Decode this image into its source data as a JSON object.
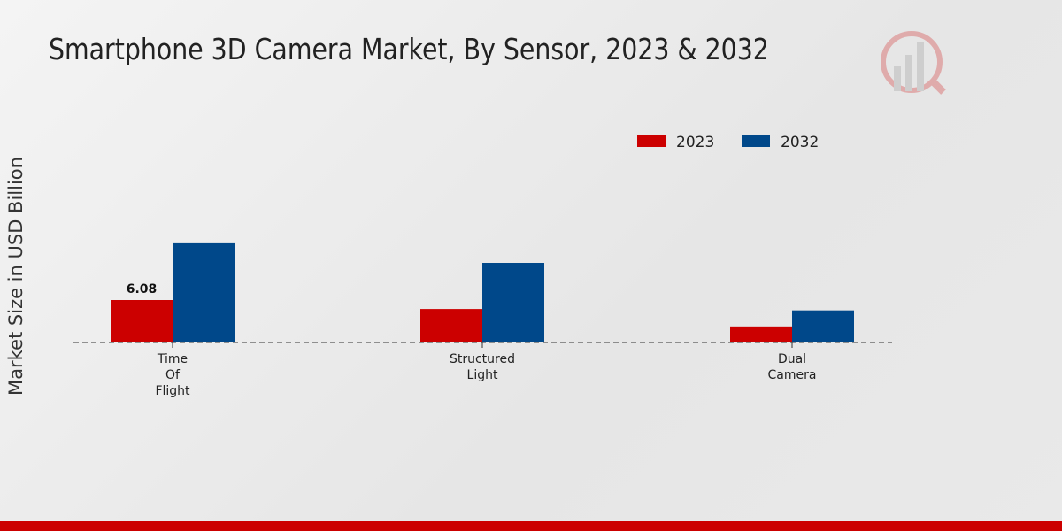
{
  "chart_data": {
    "type": "bar",
    "title": "Smartphone 3D Camera Market, By Sensor, 2023 & 2032",
    "xlabel": "",
    "ylabel": "Market Size in USD Billion",
    "categories": [
      [
        "Time",
        "Of",
        "Flight"
      ],
      [
        "Structured",
        "Light"
      ],
      [
        "Dual",
        "Camera"
      ]
    ],
    "series": [
      {
        "name": "2023",
        "color": "#cc0000",
        "values": [
          6.08,
          4.8,
          2.3
        ]
      },
      {
        "name": "2032",
        "color": "#00488a",
        "values": [
          14.2,
          11.4,
          4.6
        ]
      }
    ],
    "data_labels": [
      {
        "series": 0,
        "index": 0,
        "text": "6.08"
      }
    ],
    "legend_position": "top-right",
    "grid": false
  }
}
